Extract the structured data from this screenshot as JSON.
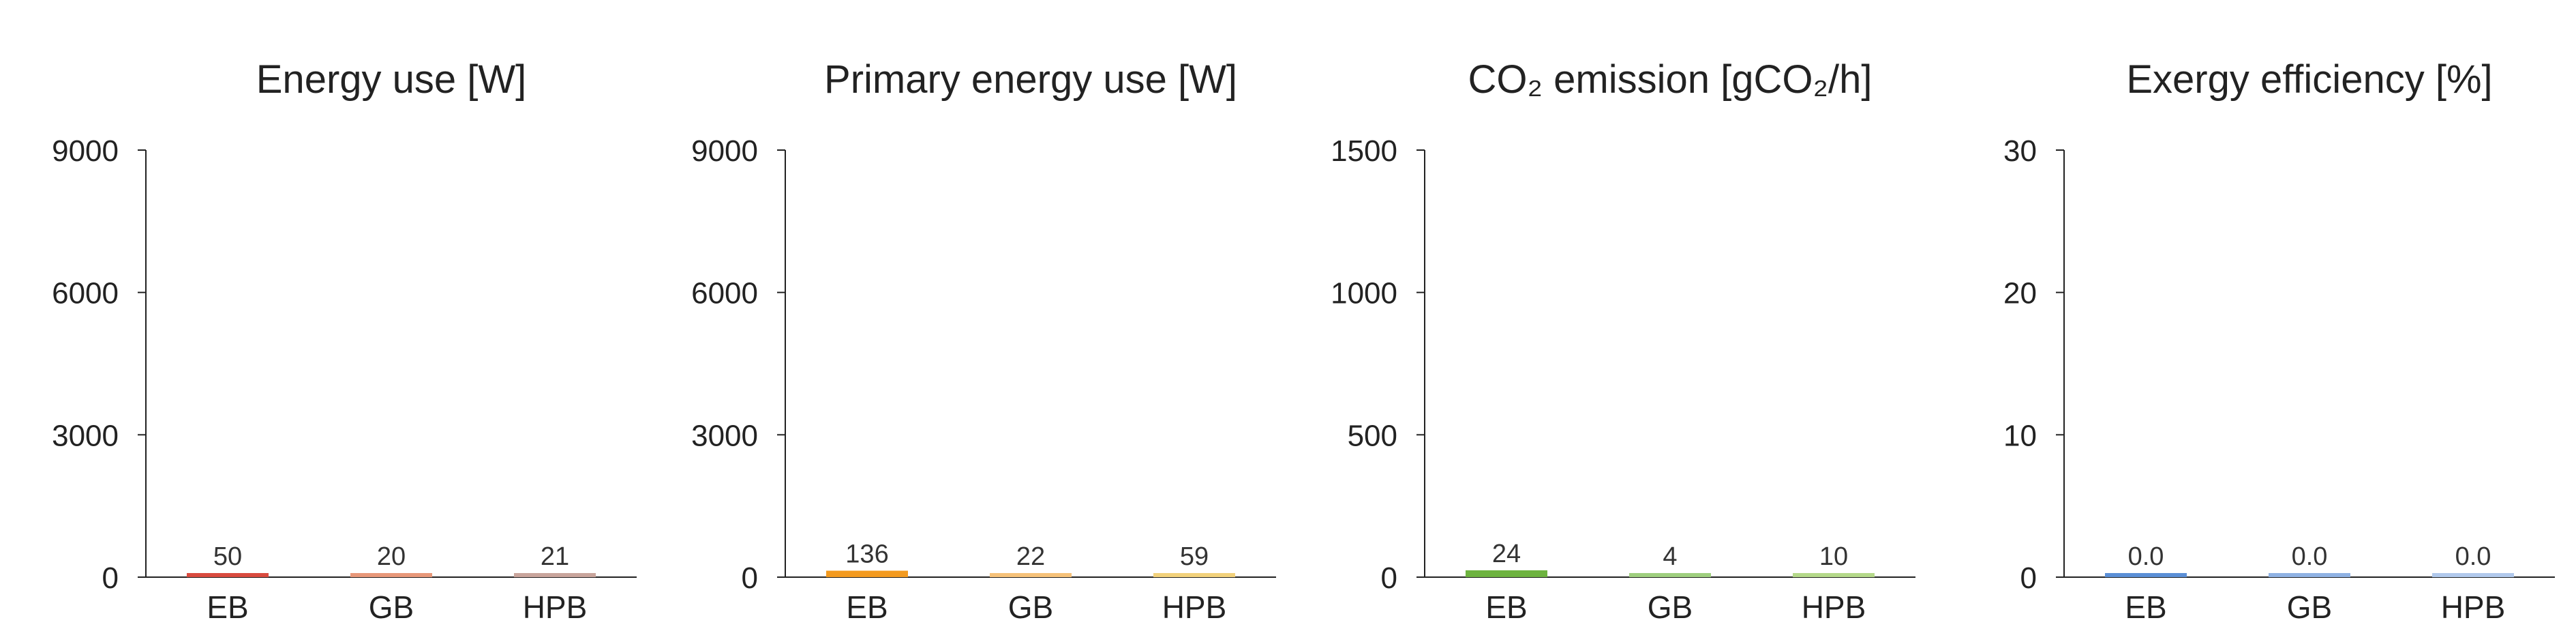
{
  "chart_data": [
    {
      "type": "bar",
      "title": "Energy use [W]",
      "categories": [
        "EB",
        "GB",
        "HPB"
      ],
      "values": [
        50,
        20,
        21
      ],
      "value_labels": [
        "50",
        "20",
        "21"
      ],
      "ylim": [
        0,
        9000
      ],
      "yticks": [
        0,
        3000,
        6000,
        9000
      ],
      "ytick_labels": [
        "0",
        "3000",
        "6000",
        "9000"
      ],
      "colors": [
        "#d94b3f",
        "#e8987a",
        "#c9a59c"
      ],
      "grid": false
    },
    {
      "type": "bar",
      "title": "Primary energy use [W]",
      "categories": [
        "EB",
        "GB",
        "HPB"
      ],
      "values": [
        136,
        22,
        59
      ],
      "value_labels": [
        "136",
        "22",
        "59"
      ],
      "ylim": [
        0,
        9000
      ],
      "yticks": [
        0,
        3000,
        6000,
        9000
      ],
      "ytick_labels": [
        "0",
        "3000",
        "6000",
        "9000"
      ],
      "colors": [
        "#f39a1f",
        "#f6c27a",
        "#f2d27c"
      ],
      "grid": false
    },
    {
      "type": "bar",
      "title": "CO₂ emission [gCO₂/h]",
      "categories": [
        "EB",
        "GB",
        "HPB"
      ],
      "values": [
        24,
        4,
        10
      ],
      "value_labels": [
        "24",
        "4",
        "10"
      ],
      "ylim": [
        0,
        1500
      ],
      "yticks": [
        0,
        500,
        1000,
        1500
      ],
      "ytick_labels": [
        "0",
        "500",
        "1000",
        "1500"
      ],
      "colors": [
        "#6db33f",
        "#9fcf7f",
        "#b5d98a"
      ],
      "grid": false
    },
    {
      "type": "bar",
      "title": "Exergy efficiency [%]",
      "categories": [
        "EB",
        "GB",
        "HPB"
      ],
      "values": [
        0.0,
        0.0,
        0.0
      ],
      "value_labels": [
        "0.0",
        "0.0",
        "0.0"
      ],
      "ylim": [
        0,
        30
      ],
      "yticks": [
        0,
        10,
        20,
        30
      ],
      "ytick_labels": [
        "0",
        "10",
        "20",
        "30"
      ],
      "colors": [
        "#5b8fd6",
        "#8fb2e3",
        "#b1c9ec"
      ],
      "grid": false
    }
  ]
}
